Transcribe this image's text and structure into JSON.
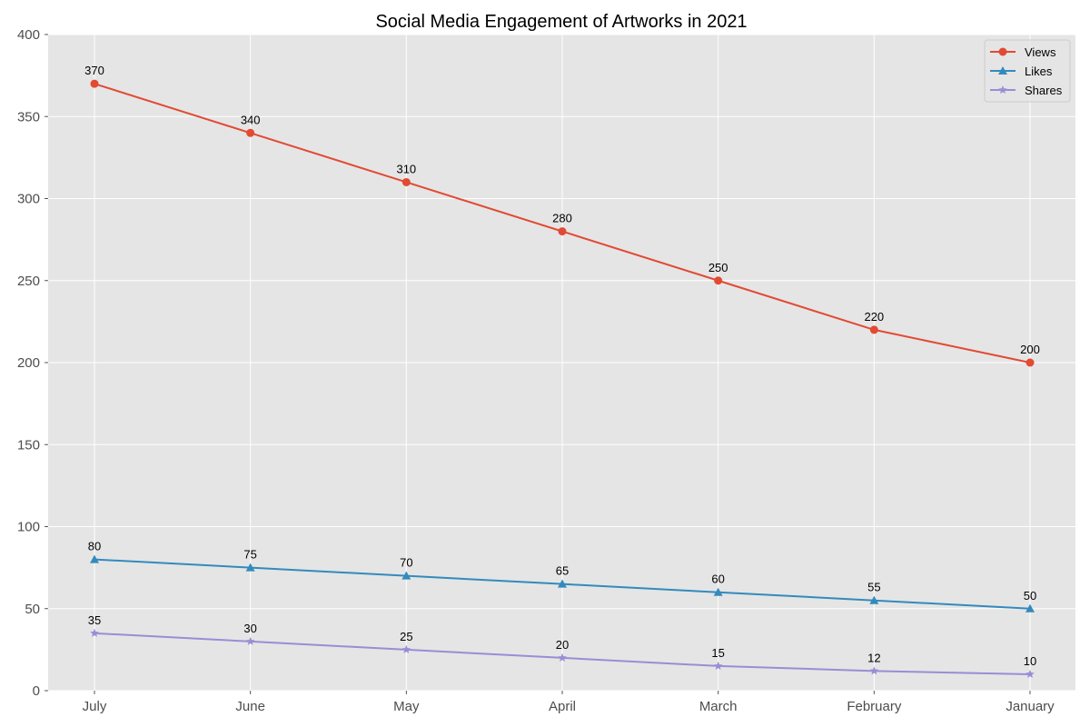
{
  "chart_data": {
    "type": "line",
    "title": "Social Media Engagement of Artworks in 2021",
    "xlabel": "",
    "ylabel": "",
    "categories": [
      "July",
      "June",
      "May",
      "April",
      "March",
      "February",
      "January"
    ],
    "series": [
      {
        "name": "Views",
        "values": [
          370,
          340,
          310,
          280,
          250,
          220,
          200
        ],
        "color": "#E24A33",
        "marker": "circle"
      },
      {
        "name": "Likes",
        "values": [
          80,
          75,
          70,
          65,
          60,
          55,
          50
        ],
        "color": "#348ABD",
        "marker": "triangle"
      },
      {
        "name": "Shares",
        "values": [
          35,
          30,
          25,
          20,
          15,
          12,
          10
        ],
        "color": "#988ED5",
        "marker": "star"
      }
    ],
    "ylim": [
      0,
      400
    ],
    "yticks": [
      0,
      50,
      100,
      150,
      200,
      250,
      300,
      350,
      400
    ],
    "grid": true,
    "legend": "top-right",
    "plot_background": "#E5E5E5"
  }
}
